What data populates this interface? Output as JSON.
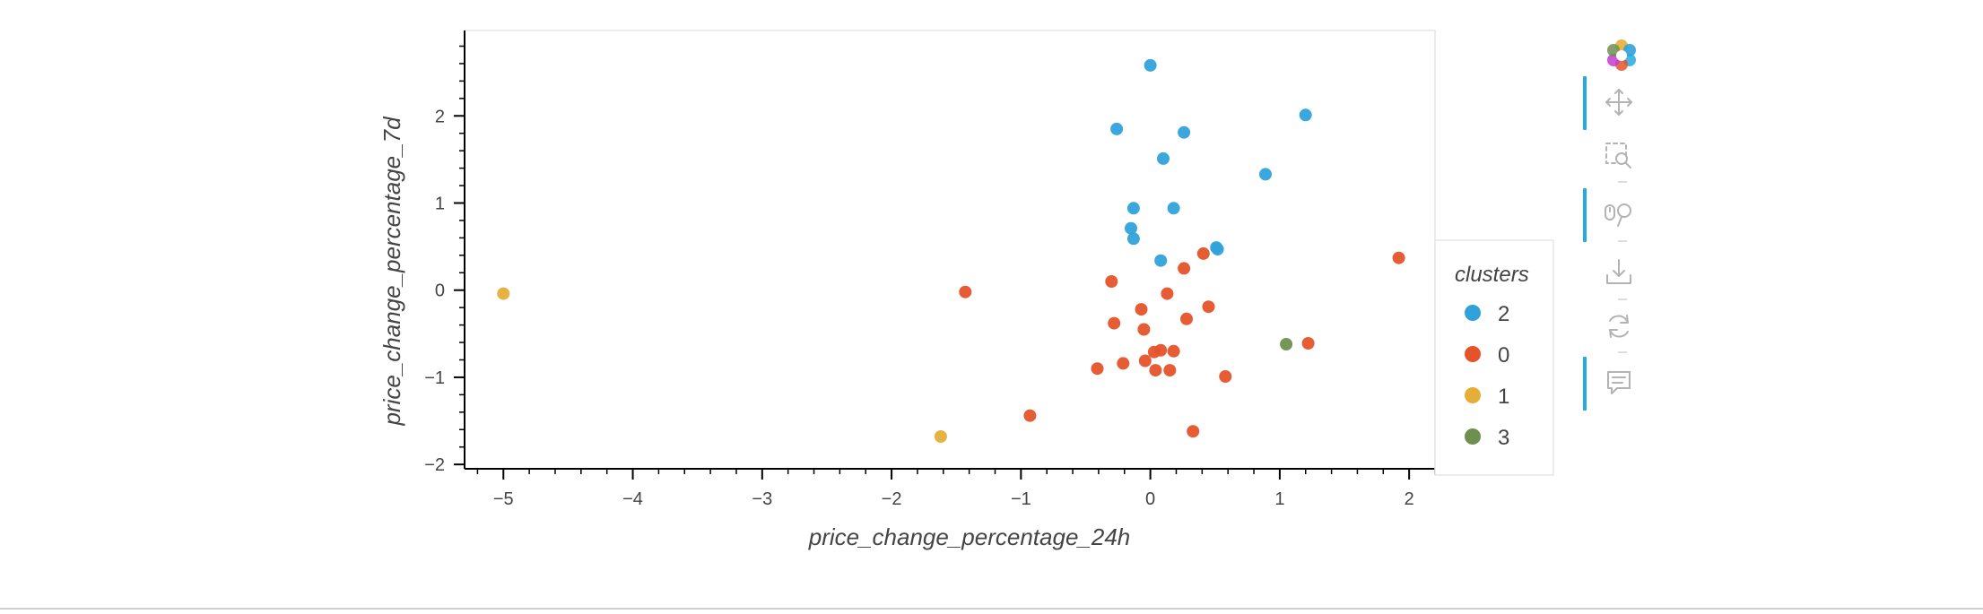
{
  "colors": {
    "background": "#ffffff",
    "frame": "#e5e5e5",
    "axis": "#000000",
    "text": "#444444",
    "toolbar_icon": "#b3b3b3",
    "toolbar_active": "#26aae1"
  },
  "legend": {
    "title": "clusters",
    "items": [
      {
        "label": "2",
        "color": "#30a2da"
      },
      {
        "label": "0",
        "color": "#e5532a"
      },
      {
        "label": "1",
        "color": "#e5ae38"
      },
      {
        "label": "3",
        "color": "#6d904f"
      }
    ]
  },
  "toolbar": {
    "tools": [
      {
        "name": "bokeh-logo",
        "active": false
      },
      {
        "name": "pan-tool",
        "active": true
      },
      {
        "name": "box-zoom-tool",
        "active": false
      },
      {
        "name": "wheel-zoom-tool",
        "active": true
      },
      {
        "name": "save-tool",
        "active": false
      },
      {
        "name": "reset-tool",
        "active": false
      },
      {
        "name": "hover-tool",
        "active": true
      }
    ]
  },
  "chart_data": {
    "type": "scatter",
    "title": "",
    "xlabel": "price_change_percentage_24h",
    "ylabel": "price_change_percentage_7d",
    "xlim": [
      -5.3,
      2.2
    ],
    "ylim": [
      -2.05,
      2.98
    ],
    "xticks": [
      -5,
      -4,
      -3,
      -2,
      -1,
      0,
      1,
      2
    ],
    "xtick_labels": [
      "−5",
      "−4",
      "−3",
      "−2",
      "−1",
      "0",
      "1",
      "2"
    ],
    "yticks": [
      -2,
      -1,
      0,
      1,
      2
    ],
    "ytick_labels": [
      "−2",
      "−1",
      "0",
      "1",
      "2"
    ],
    "grid": false,
    "legend_position": "right",
    "series": [
      {
        "name": "2",
        "color": "#30a2da",
        "points": [
          [
            0.0,
            2.58
          ],
          [
            1.2,
            2.01
          ],
          [
            -0.26,
            1.85
          ],
          [
            0.26,
            1.81
          ],
          [
            0.1,
            1.51
          ],
          [
            0.89,
            1.33
          ],
          [
            -0.13,
            0.94
          ],
          [
            0.18,
            0.94
          ],
          [
            -0.15,
            0.71
          ],
          [
            -0.13,
            0.59
          ],
          [
            0.51,
            0.49
          ],
          [
            0.52,
            0.47
          ],
          [
            0.08,
            0.34
          ]
        ]
      },
      {
        "name": "0",
        "color": "#e5532a",
        "points": [
          [
            1.92,
            0.37
          ],
          [
            0.41,
            0.42
          ],
          [
            0.26,
            0.25
          ],
          [
            -0.3,
            0.1
          ],
          [
            -1.43,
            -0.02
          ],
          [
            0.13,
            -0.04
          ],
          [
            0.45,
            -0.19
          ],
          [
            -0.07,
            -0.22
          ],
          [
            0.28,
            -0.33
          ],
          [
            -0.28,
            -0.38
          ],
          [
            -0.05,
            -0.45
          ],
          [
            0.18,
            -0.7
          ],
          [
            0.08,
            -0.69
          ],
          [
            0.03,
            -0.71
          ],
          [
            -0.04,
            -0.81
          ],
          [
            -0.21,
            -0.84
          ],
          [
            -0.41,
            -0.9
          ],
          [
            0.04,
            -0.92
          ],
          [
            0.15,
            -0.92
          ],
          [
            0.58,
            -0.99
          ],
          [
            1.22,
            -0.61
          ],
          [
            -0.93,
            -1.44
          ],
          [
            0.33,
            -1.62
          ]
        ]
      },
      {
        "name": "1",
        "color": "#e5ae38",
        "points": [
          [
            -5.0,
            -0.04
          ],
          [
            -1.62,
            -1.68
          ]
        ]
      },
      {
        "name": "3",
        "color": "#6d904f",
        "points": [
          [
            1.05,
            -0.62
          ]
        ]
      }
    ]
  }
}
